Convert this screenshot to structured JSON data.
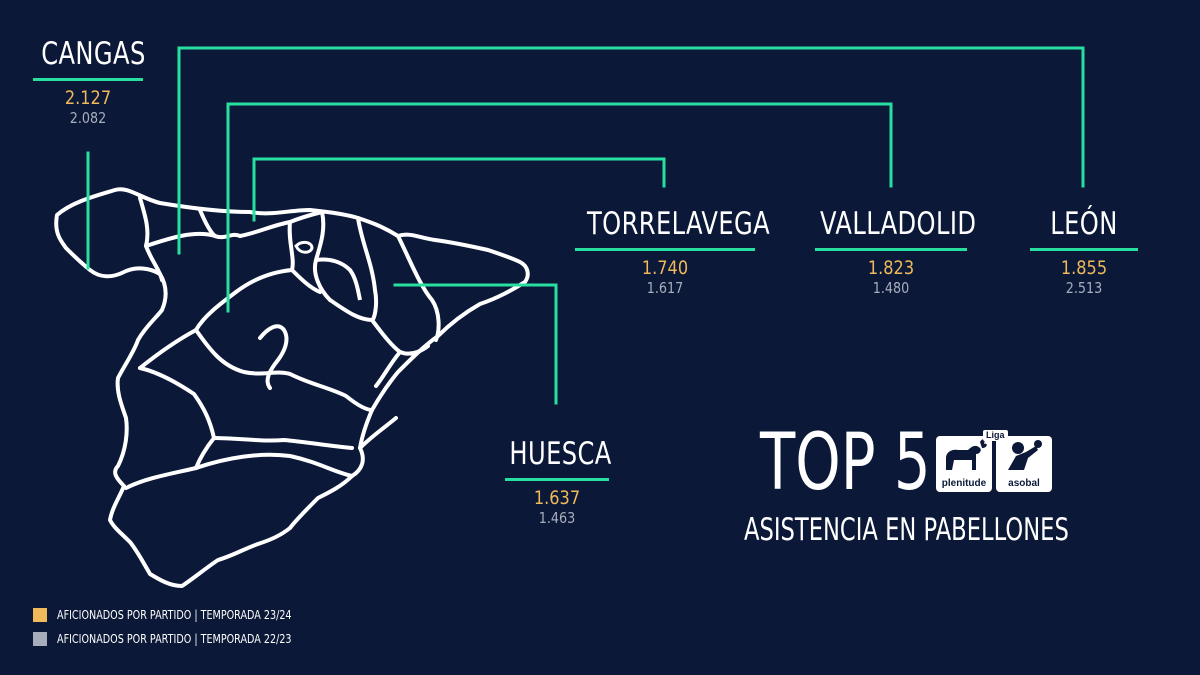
{
  "colors": {
    "background": "#0b1838",
    "connector": "#27e0a0",
    "season_2324": "#f0b95a",
    "season_2223": "#a7adbb",
    "map_outline": "#ffffff"
  },
  "title": {
    "main": "TOP 5",
    "subtitle": "ASISTENCIA EN PABELLONES"
  },
  "logo": {
    "tag": "Liga",
    "left_text": "plenitude",
    "right_text": "asobal",
    "left_icon": "dog-with-flame-icon",
    "right_icon": "handball-player-icon"
  },
  "cities": [
    {
      "name": "CANGAS",
      "season_2324": "2.127",
      "season_2223": "2.082"
    },
    {
      "name": "TORRELAVEGA",
      "season_2324": "1.740",
      "season_2223": "1.617"
    },
    {
      "name": "VALLADOLID",
      "season_2324": "1.823",
      "season_2223": "1.480"
    },
    {
      "name": "LEÓN",
      "season_2324": "1.855",
      "season_2223": "2.513"
    },
    {
      "name": "HUESCA",
      "season_2324": "1.637",
      "season_2223": "1.463"
    }
  ],
  "legend": [
    {
      "label": "AFICIONADOS POR PARTIDO | TEMPORADA 23/24",
      "color": "#f0b95a"
    },
    {
      "label": "AFICIONADOS POR PARTIDO | TEMPORADA 22/23",
      "color": "#a7adbb"
    }
  ]
}
